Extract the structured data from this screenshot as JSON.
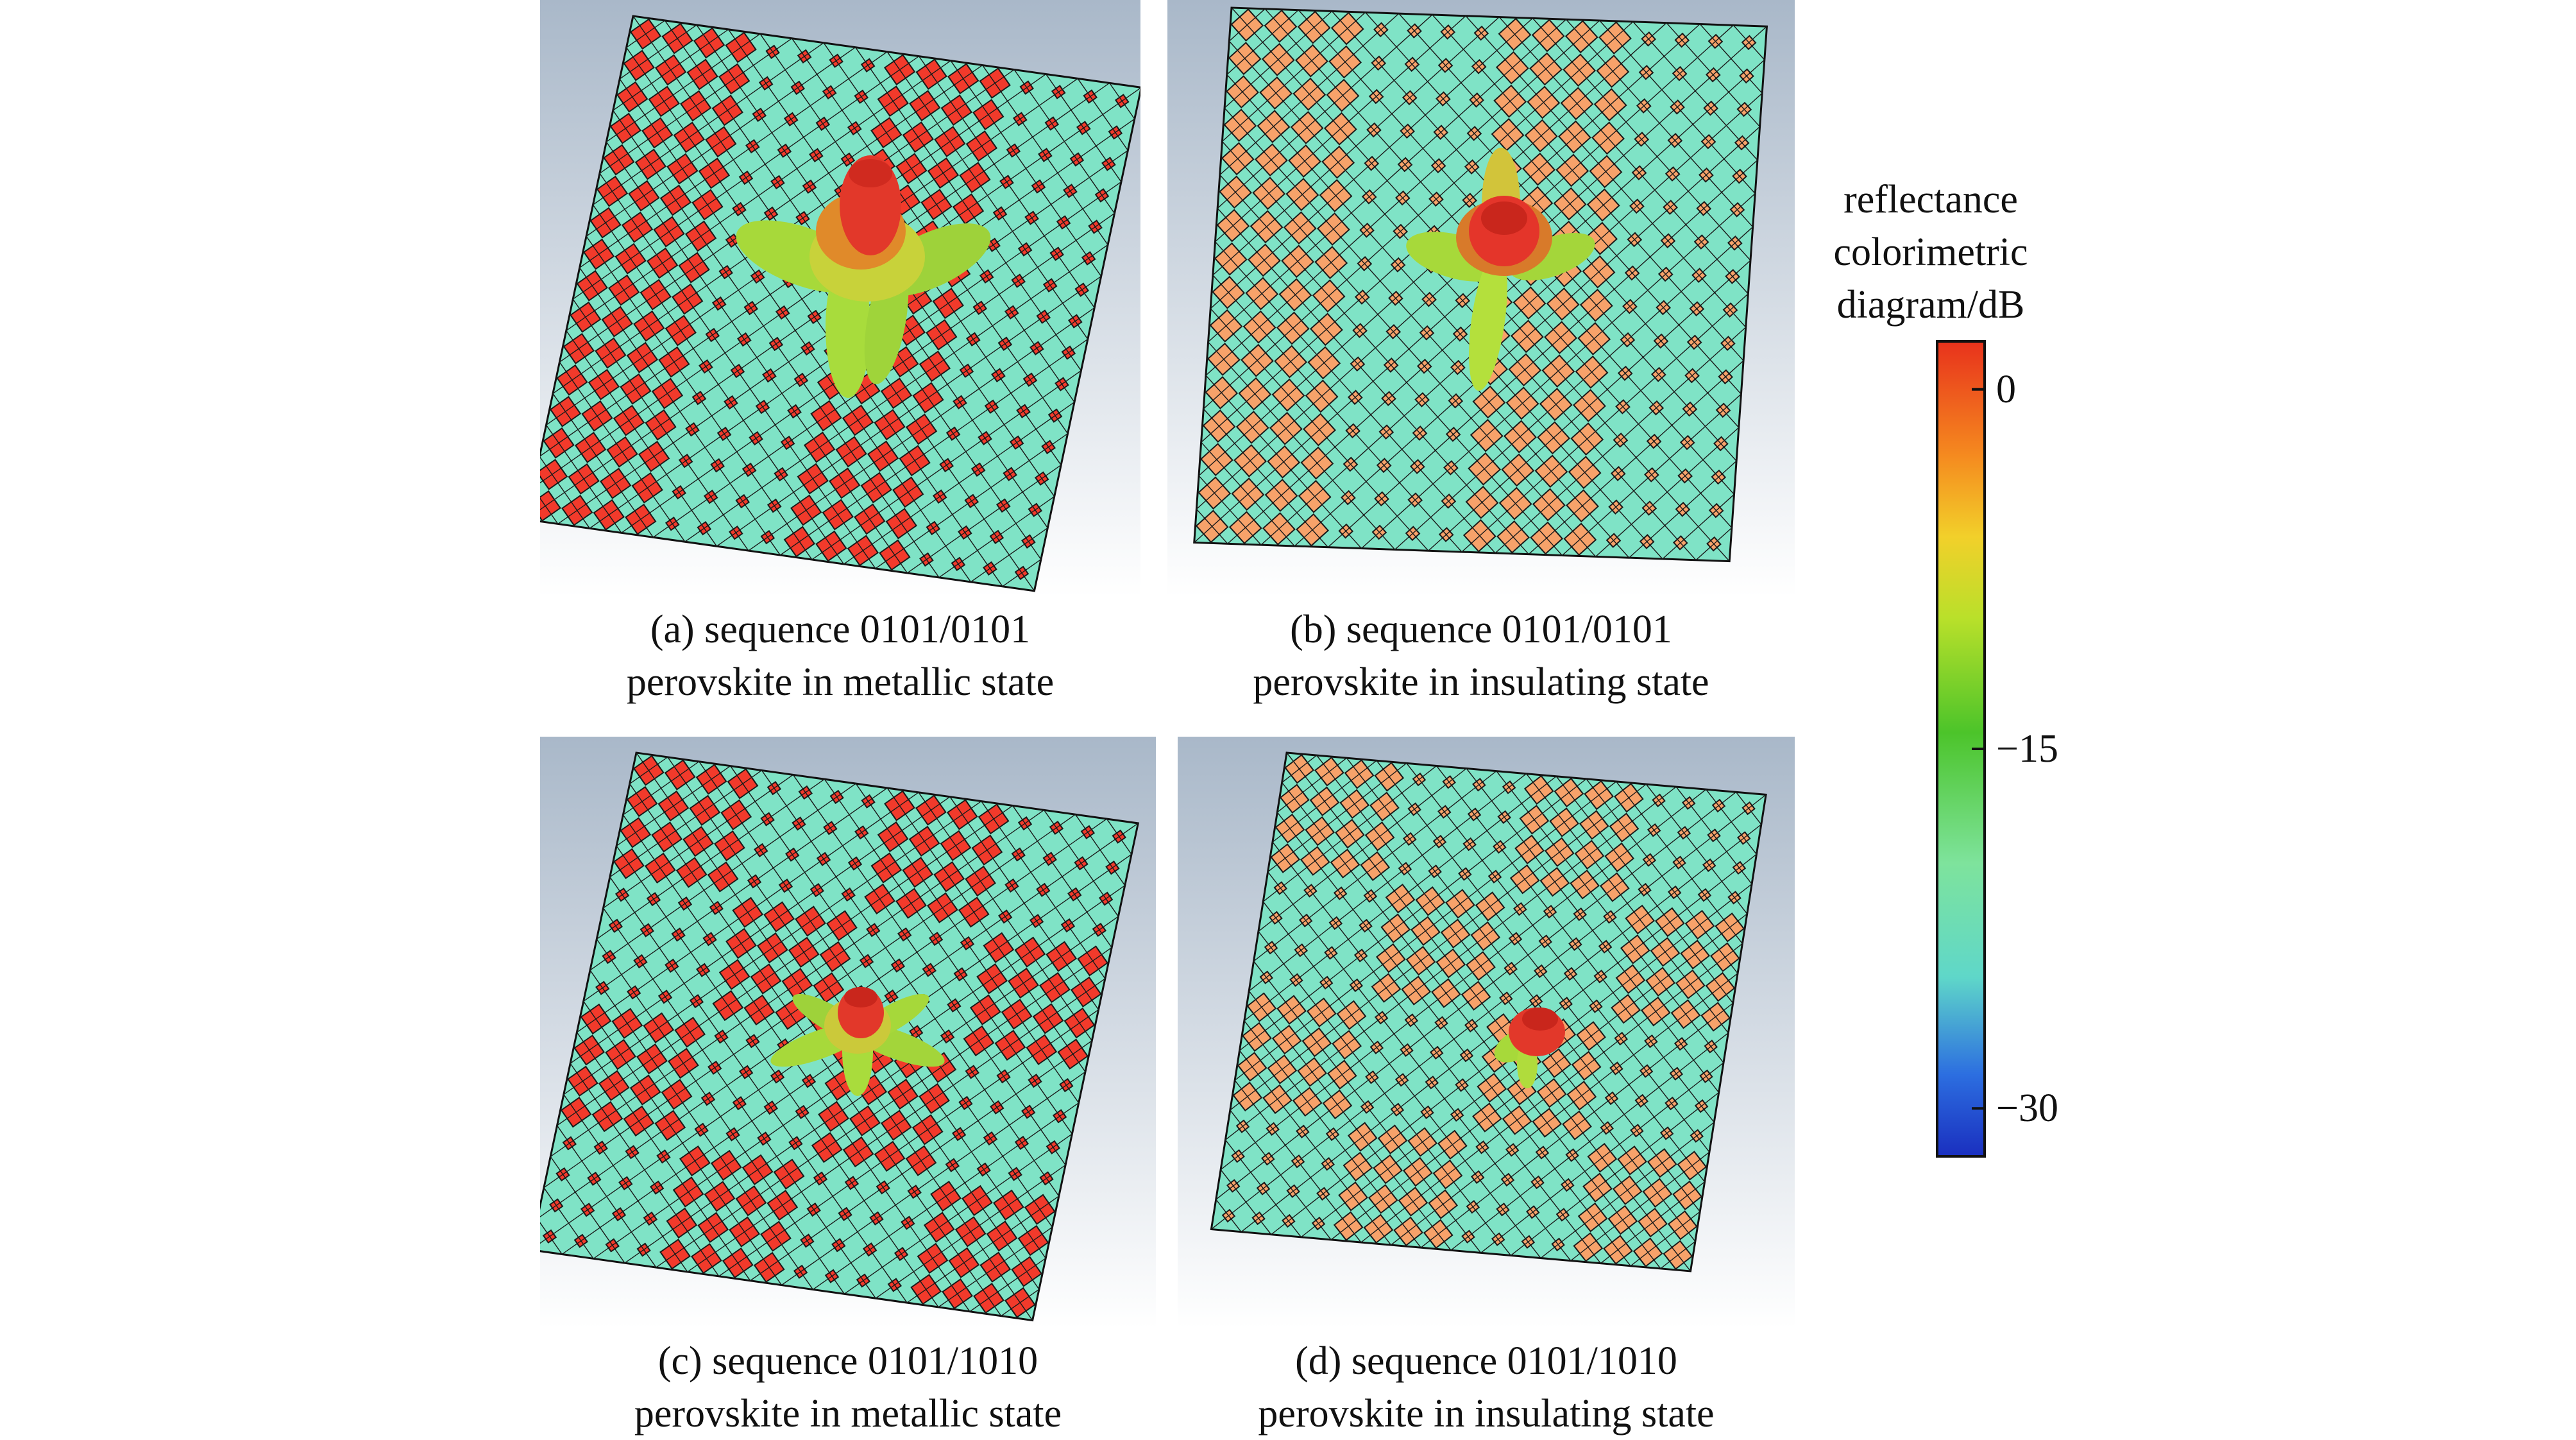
{
  "panels": [
    {
      "id": "a",
      "caption_line1": "(a) sequence 0101/0101",
      "caption_line2": "perovskite in metallic state",
      "state": "metallic",
      "pattern": "0101/0101"
    },
    {
      "id": "b",
      "caption_line1": "(b) sequence 0101/0101",
      "caption_line2": "perovskite in insulating state",
      "state": "insulating",
      "pattern": "0101/0101"
    },
    {
      "id": "c",
      "caption_line1": "(c) sequence 0101/1010",
      "caption_line2": "perovskite in metallic state",
      "state": "metallic",
      "pattern": "0101/1010"
    },
    {
      "id": "d",
      "caption_line1": "(d) sequence 0101/1010",
      "caption_line2": "perovskite in insulating state",
      "state": "insulating",
      "pattern": "0101/1010"
    }
  ],
  "legend": {
    "title_line1": "reflectance",
    "title_line2": "colorimetric",
    "title_line3": "diagram/dB",
    "ticks": [
      {
        "value": 0,
        "label": "0"
      },
      {
        "value": -15,
        "label": "−15"
      },
      {
        "value": -30,
        "label": "−30"
      }
    ],
    "range": [
      -32,
      2
    ]
  },
  "colors": {
    "cell_base": "#7fe3c6",
    "metallic_patch": "#f23a2b",
    "insulating_patch": "#f7a26a",
    "grid_line": "#1a1a1a",
    "background_top": "#a9b8c9",
    "background_bottom": "#ffffff",
    "colorbar": [
      "#1a2fbf",
      "#2c6ee0",
      "#5fd7c9",
      "#7ee39c",
      "#4cc42a",
      "#b9e02a",
      "#f2d02a",
      "#f58a1f",
      "#e8321c"
    ]
  }
}
